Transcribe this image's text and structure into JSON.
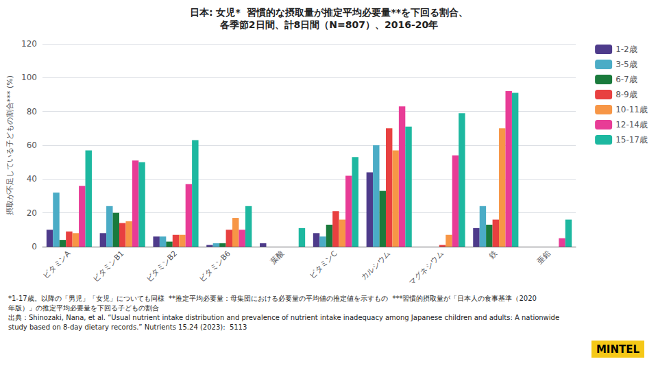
{
  "chart_data": {
    "type": "bar",
    "title": "日本: 女児*  習慣的な摂取量が推定平均必要量**を下回る割合、",
    "subtitle": "各季節2日間、計8日間（N=807）、2016-20年",
    "y_label": "摂取が不足している子どもの割合*** (%)",
    "categories": [
      "ビタミンA",
      "ビタミンB1",
      "ビタミンB2",
      "ビタミンB6",
      "葉酸",
      "ビタミンC",
      "カルシウム",
      "マグネシウム",
      "鉄",
      "亜鉛"
    ],
    "series": [
      {
        "name": "1-2歳",
        "color": "#4e3b8b",
        "values": [
          10,
          8,
          6,
          1,
          2,
          8,
          44,
          0,
          11,
          0
        ]
      },
      {
        "name": "3-5歳",
        "color": "#4bacc6",
        "values": [
          32,
          24,
          6,
          2,
          0,
          6,
          60,
          0,
          24,
          0
        ]
      },
      {
        "name": "6-7歳",
        "color": "#1a7a3c",
        "values": [
          4,
          20,
          3,
          2,
          0,
          13,
          33,
          0,
          13,
          0
        ]
      },
      {
        "name": "8-9歳",
        "color": "#e84040",
        "values": [
          9,
          14,
          7,
          10,
          0,
          21,
          70,
          1,
          16,
          0
        ]
      },
      {
        "name": "10-11歳",
        "color": "#f79646",
        "values": [
          8,
          15,
          7,
          17,
          0,
          16,
          57,
          7,
          70,
          0
        ]
      },
      {
        "name": "12-14歳",
        "color": "#e83c96",
        "values": [
          36,
          51,
          37,
          10,
          0,
          42,
          83,
          54,
          92,
          5
        ]
      },
      {
        "name": "15-17歳",
        "color": "#1db8a0",
        "values": [
          57,
          50,
          63,
          24,
          11,
          53,
          71,
          79,
          91,
          16
        ]
      }
    ],
    "ylim": [
      0,
      120
    ],
    "yticks": [
      0,
      20,
      40,
      60,
      80,
      100,
      120
    ],
    "grid": true,
    "legend": "right",
    "annotations": [
      {
        "text": "*1-17歳。以降の「男児」「女児」についても同様  **推定平均必要量：母集団における必要量の平均値の推定値を示すもの  ***習慣的摂取量が「日本人の食事基準（2020"
      },
      {
        "text": "年版）」の推定平均必要量を下回る子どもの割合"
      },
      {
        "text": "出典：Shinozaki, Nana, et al. “Usual nutrient intake distribution and prevalence of nutrient intake inadequacy among Japanese children and adults: A nationwide"
      },
      {
        "text": "study based on 8-day dietary records.” Nutrients 15.24 (2023):  5113"
      },
      {
        "text": "MINTEL",
        "color": "#f5c818"
      }
    ]
  }
}
